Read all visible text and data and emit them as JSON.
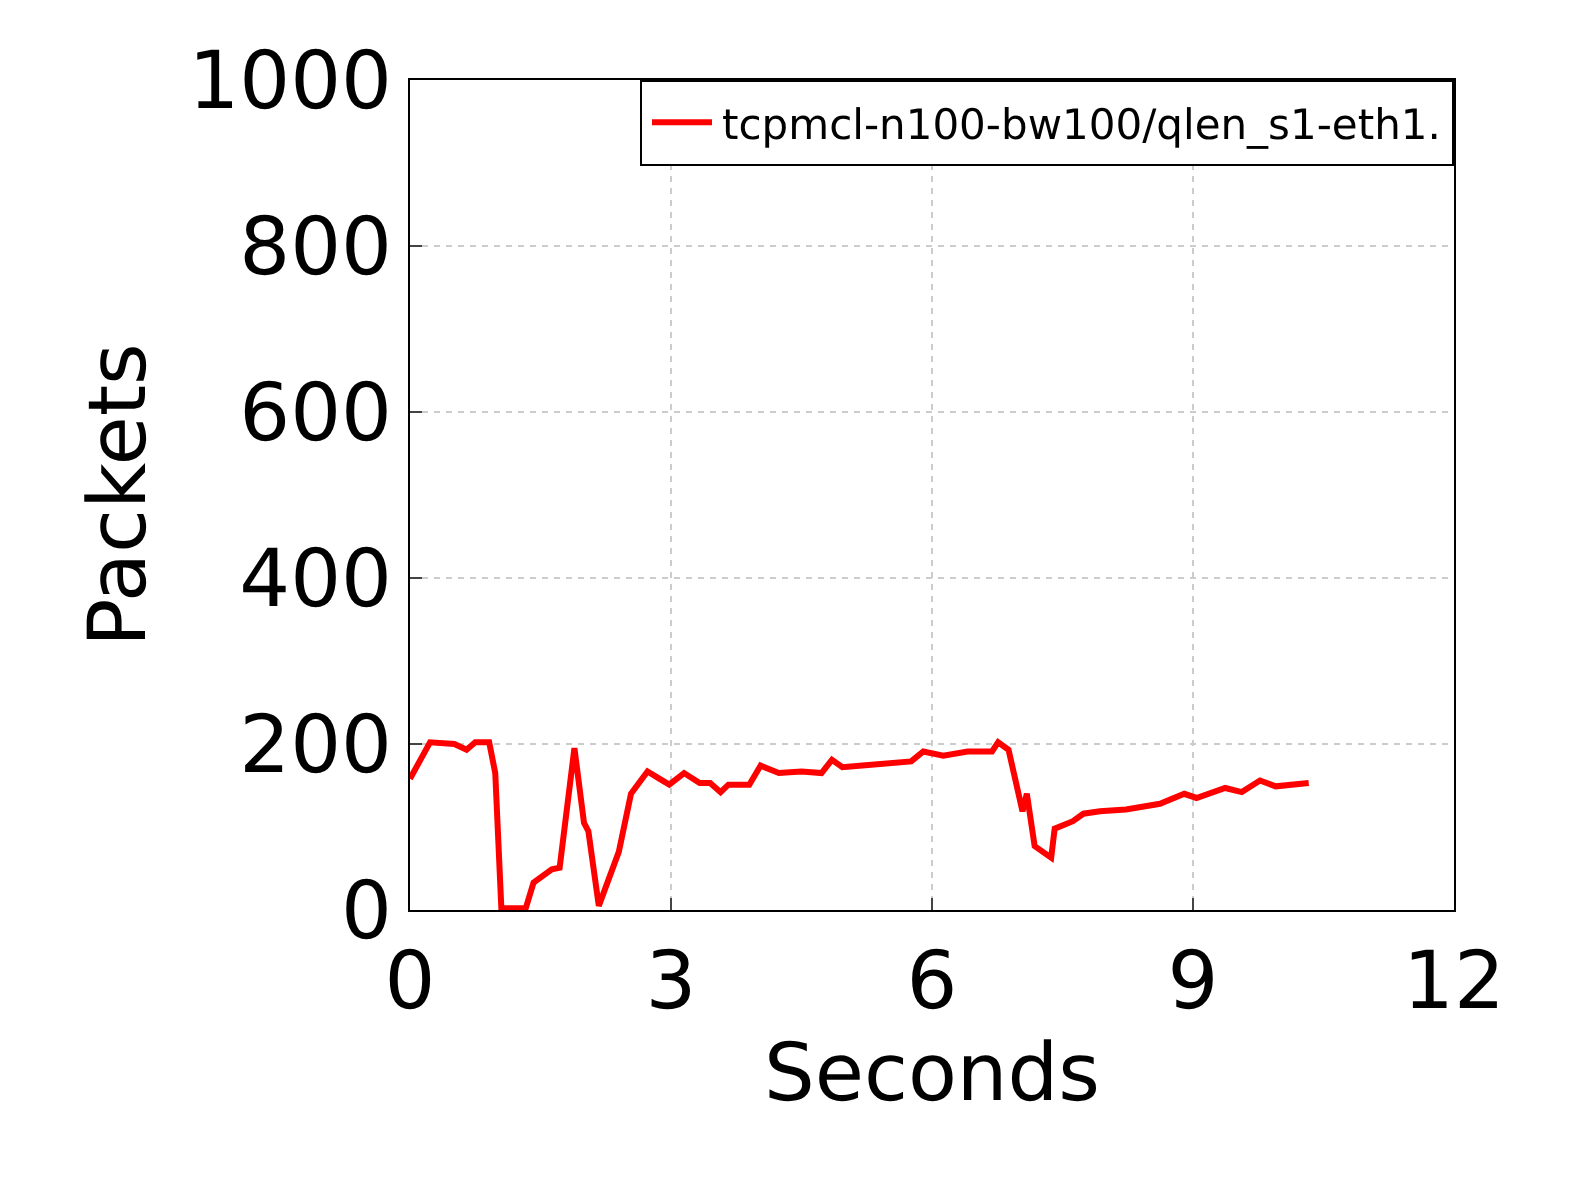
{
  "chart_data": {
    "type": "line",
    "xlabel": "Seconds",
    "ylabel": "Packets",
    "x": [
      0,
      0.23,
      0.51,
      0.65,
      0.75,
      0.91,
      0.98,
      1.05,
      1.33,
      1.42,
      1.63,
      1.72,
      1.89,
      2.0,
      2.05,
      2.17,
      2.4,
      2.54,
      2.73,
      2.87,
      2.98,
      3.15,
      3.33,
      3.45,
      3.57,
      3.66,
      3.9,
      4.03,
      4.24,
      4.5,
      4.73,
      4.85,
      4.97,
      5.2,
      5.76,
      5.9,
      6.13,
      6.41,
      6.69,
      6.76,
      6.88,
      7.04,
      7.09,
      7.18,
      7.37,
      7.41,
      7.62,
      7.74,
      7.93,
      8.23,
      8.62,
      8.9,
      9.04,
      9.37,
      9.56,
      9.77,
      9.95,
      10.33
    ],
    "series": [
      {
        "name": "tcpmcl-n100-bw100/qlen_s1-eth1.",
        "color": "#ff0000",
        "values": [
          158,
          202,
          200,
          193,
          202,
          202,
          165,
          2,
          2,
          33,
          49,
          51,
          195,
          105,
          95,
          5,
          70,
          140,
          167,
          158,
          151,
          165,
          153,
          153,
          142,
          151,
          151,
          174,
          165,
          167,
          165,
          181,
          172,
          174,
          179,
          191,
          186,
          191,
          191,
          202,
          193,
          119,
          140,
          77,
          63,
          98,
          107,
          116,
          119,
          121,
          128,
          140,
          135,
          147,
          142,
          156,
          149,
          153
        ]
      }
    ],
    "xlim": [
      0,
      12
    ],
    "xticks": [
      0,
      3,
      6,
      9,
      12
    ],
    "ylim": [
      0,
      1000
    ],
    "yticks": [
      0,
      200,
      400,
      600,
      800,
      1000
    ],
    "grid": true,
    "legend": "top right",
    "marker": "none",
    "line_style": "solid"
  }
}
